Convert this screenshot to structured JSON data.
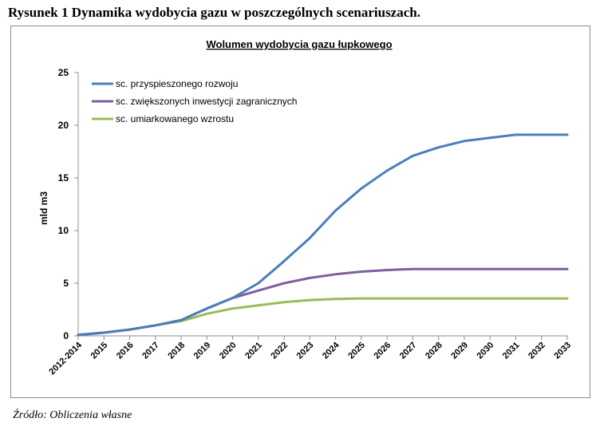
{
  "caption": "Rysunek 1 Dynamika wydobycia gazu w poszczególnych scenariuszach.",
  "source": "Źródło: Obliczenia własne",
  "chart_data": {
    "type": "line",
    "title": "Wolumen wydobycia gazu łupkowego",
    "xlabel": "",
    "ylabel": "mld m3",
    "ylim": [
      0,
      25
    ],
    "yticks": [
      0,
      5,
      10,
      15,
      20,
      25
    ],
    "grid": false,
    "legend_position": "top-left",
    "categories": [
      "2012-2014",
      "2015",
      "2016",
      "2017",
      "2018",
      "2019",
      "2020",
      "2021",
      "2022",
      "2023",
      "2024",
      "2025",
      "2026",
      "2027",
      "2028",
      "2029",
      "2030",
      "2031",
      "2032",
      "2033"
    ],
    "series": [
      {
        "name": "sc. przyspieszonego rozwoju",
        "color": "#4a7ebb",
        "values": [
          0.1,
          0.3,
          0.6,
          1.0,
          1.5,
          2.6,
          3.6,
          5.0,
          7.1,
          9.3,
          11.9,
          14.0,
          15.7,
          17.1,
          17.9,
          18.5,
          18.8,
          19.1,
          19.1,
          19.1
        ]
      },
      {
        "name": "sc. zwiększonych inwestycji zagranicznych",
        "color": "#7d5fa0",
        "values": [
          0.1,
          0.3,
          0.6,
          1.0,
          1.5,
          2.6,
          3.6,
          4.3,
          5.0,
          5.5,
          5.85,
          6.1,
          6.25,
          6.35,
          6.35,
          6.35,
          6.35,
          6.35,
          6.35,
          6.35
        ]
      },
      {
        "name": "sc. umiarkowanego wzrostu",
        "color": "#9bbb59",
        "values": [
          0.1,
          0.3,
          0.6,
          1.0,
          1.4,
          2.1,
          2.6,
          2.9,
          3.2,
          3.4,
          3.5,
          3.55,
          3.55,
          3.55,
          3.55,
          3.55,
          3.55,
          3.55,
          3.55,
          3.55
        ]
      }
    ]
  }
}
